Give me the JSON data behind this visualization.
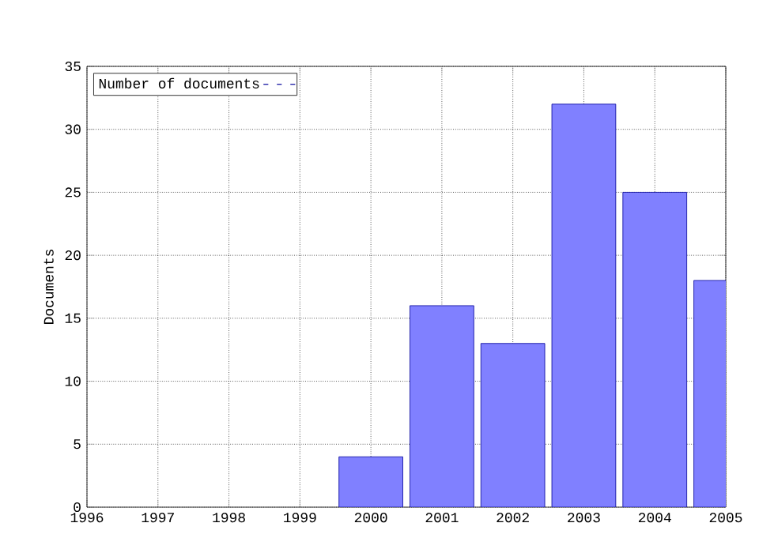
{
  "chart_data": {
    "type": "bar",
    "ylabel": "Documents",
    "x": [
      2000,
      2001,
      2002,
      2003,
      2004,
      2005
    ],
    "series": [
      {
        "name": "Number of documents",
        "color": "#8080ff",
        "values": [
          4,
          16,
          13,
          32,
          25,
          18
        ]
      }
    ],
    "xlim": [
      1996,
      2005
    ],
    "xticks": [
      1996,
      1997,
      1998,
      1999,
      2000,
      2001,
      2002,
      2003,
      2004,
      2005
    ],
    "ylim": [
      0,
      35
    ],
    "yticks": [
      0,
      5,
      10,
      15,
      20,
      25,
      30,
      35
    ],
    "grid": true,
    "legend": "top left"
  }
}
